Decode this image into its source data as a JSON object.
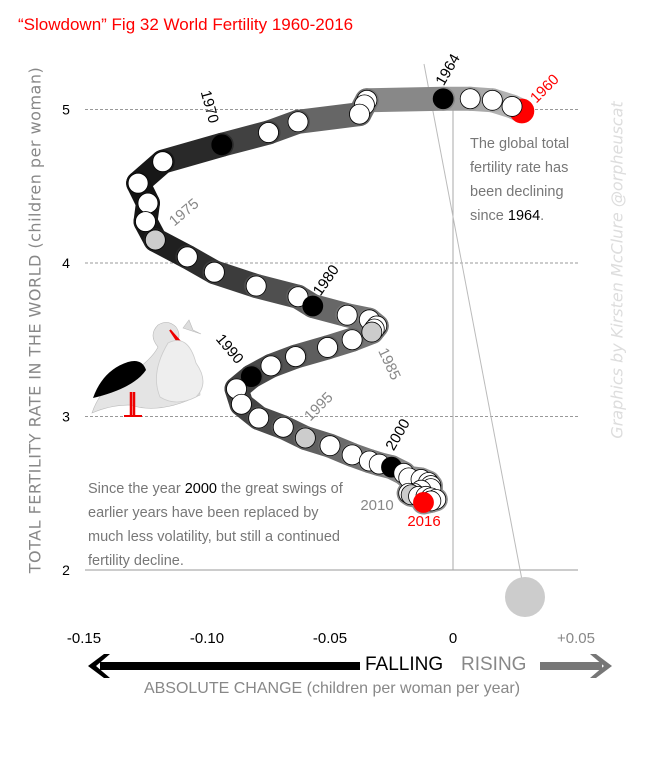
{
  "title": "“Slowdown” Fig 32 World Fertility 1960-2016",
  "annotations": {
    "top_pre": "The global total fertility rate has been declining since ",
    "top_year": "1964",
    "top_post": ".",
    "bottom_pre": "Since the year ",
    "bottom_year": "2000",
    "bottom_post": " the great swings of earlier years have been replaced by much less volatility, but still a continued fertility decline."
  },
  "credit": "Graphics by Kirsten McClure @orpheuscat",
  "arrows": {
    "falling": "FALLING",
    "rising": "RISING"
  },
  "colors": {
    "title": "#ff0000",
    "highlight_red": "#ff0000",
    "highlight_black": "#000000",
    "highlight_gray": "#cccccc",
    "muted": "#888888"
  },
  "chart_data": {
    "type": "scatter",
    "title": "“Slowdown” Fig 32 World Fertility 1960-2016",
    "xlabel": "ABSOLUTE CHANGE (children per woman per year)",
    "ylabel": "TOTAL FERTILITY RATE IN THE WORLD (children per woman)",
    "xlim": [
      -0.15,
      0.05
    ],
    "ylim": [
      2,
      5.3
    ],
    "xticks": [
      {
        "v": -0.15,
        "label": "-0.15"
      },
      {
        "v": -0.1,
        "label": "-0.10"
      },
      {
        "v": -0.05,
        "label": "-0.05"
      },
      {
        "v": 0,
        "label": "0"
      },
      {
        "v": 0.05,
        "label": "+0.05"
      }
    ],
    "yticks": [
      {
        "v": 2,
        "label": "2"
      },
      {
        "v": 3,
        "label": "3"
      },
      {
        "v": 4,
        "label": "4"
      },
      {
        "v": 5,
        "label": "5"
      }
    ],
    "grid": "horizontal dashed",
    "points": [
      {
        "year": 1960,
        "x": 0.028,
        "y": 4.99,
        "mark": "red",
        "label": "1960"
      },
      {
        "year": 1961,
        "x": 0.024,
        "y": 5.02
      },
      {
        "year": 1962,
        "x": 0.016,
        "y": 5.06
      },
      {
        "year": 1963,
        "x": 0.007,
        "y": 5.07
      },
      {
        "year": 1964,
        "x": -0.004,
        "y": 5.07,
        "mark": "black",
        "label": "1964"
      },
      {
        "year": 1965,
        "x": -0.035,
        "y": 5.06
      },
      {
        "year": 1966,
        "x": -0.036,
        "y": 5.03
      },
      {
        "year": 1967,
        "x": -0.038,
        "y": 4.97
      },
      {
        "year": 1968,
        "x": -0.063,
        "y": 4.92
      },
      {
        "year": 1969,
        "x": -0.075,
        "y": 4.85
      },
      {
        "year": 1970,
        "x": -0.094,
        "y": 4.77,
        "mark": "black",
        "label": "1970"
      },
      {
        "year": 1971,
        "x": -0.118,
        "y": 4.66
      },
      {
        "year": 1972,
        "x": -0.128,
        "y": 4.52
      },
      {
        "year": 1973,
        "x": -0.124,
        "y": 4.39
      },
      {
        "year": 1974,
        "x": -0.125,
        "y": 4.27
      },
      {
        "year": 1975,
        "x": -0.121,
        "y": 4.15,
        "mark": "gray",
        "label": "1975"
      },
      {
        "year": 1976,
        "x": -0.108,
        "y": 4.04
      },
      {
        "year": 1977,
        "x": -0.097,
        "y": 3.94
      },
      {
        "year": 1978,
        "x": -0.08,
        "y": 3.85
      },
      {
        "year": 1979,
        "x": -0.063,
        "y": 3.78
      },
      {
        "year": 1980,
        "x": -0.057,
        "y": 3.72,
        "mark": "black",
        "label": "1980"
      },
      {
        "year": 1981,
        "x": -0.043,
        "y": 3.66
      },
      {
        "year": 1982,
        "x": -0.034,
        "y": 3.63
      },
      {
        "year": 1983,
        "x": -0.031,
        "y": 3.59
      },
      {
        "year": 1984,
        "x": -0.032,
        "y": 3.57
      },
      {
        "year": 1985,
        "x": -0.033,
        "y": 3.55,
        "mark": "gray",
        "label": "1985"
      },
      {
        "year": 1986,
        "x": -0.041,
        "y": 3.5
      },
      {
        "year": 1987,
        "x": -0.051,
        "y": 3.45
      },
      {
        "year": 1988,
        "x": -0.064,
        "y": 3.39
      },
      {
        "year": 1989,
        "x": -0.074,
        "y": 3.33
      },
      {
        "year": 1990,
        "x": -0.082,
        "y": 3.26,
        "mark": "black",
        "label": "1990"
      },
      {
        "year": 1991,
        "x": -0.088,
        "y": 3.18
      },
      {
        "year": 1992,
        "x": -0.086,
        "y": 3.08
      },
      {
        "year": 1993,
        "x": -0.079,
        "y": 2.99
      },
      {
        "year": 1994,
        "x": -0.069,
        "y": 2.93
      },
      {
        "year": 1995,
        "x": -0.06,
        "y": 2.86,
        "mark": "gray",
        "label": "1995"
      },
      {
        "year": 1996,
        "x": -0.05,
        "y": 2.81
      },
      {
        "year": 1997,
        "x": -0.041,
        "y": 2.75
      },
      {
        "year": 1998,
        "x": -0.034,
        "y": 2.71
      },
      {
        "year": 1999,
        "x": -0.03,
        "y": 2.69
      },
      {
        "year": 2000,
        "x": -0.025,
        "y": 2.67,
        "mark": "black",
        "label": "2000"
      },
      {
        "year": 2001,
        "x": -0.02,
        "y": 2.63
      },
      {
        "year": 2002,
        "x": -0.018,
        "y": 2.6
      },
      {
        "year": 2003,
        "x": -0.013,
        "y": 2.59
      },
      {
        "year": 2004,
        "x": -0.01,
        "y": 2.57
      },
      {
        "year": 2005,
        "x": -0.009,
        "y": 2.55
      },
      {
        "year": 2006,
        "x": -0.009,
        "y": 2.53
      },
      {
        "year": 2007,
        "x": -0.013,
        "y": 2.52
      },
      {
        "year": 2008,
        "x": -0.016,
        "y": 2.5
      },
      {
        "year": 2009,
        "x": -0.018,
        "y": 2.5
      },
      {
        "year": 2010,
        "x": -0.017,
        "y": 2.49,
        "mark": "gray",
        "label": "2010"
      },
      {
        "year": 2011,
        "x": -0.014,
        "y": 2.48
      },
      {
        "year": 2012,
        "x": -0.011,
        "y": 2.48
      },
      {
        "year": 2013,
        "x": -0.009,
        "y": 2.47
      },
      {
        "year": 2014,
        "x": -0.007,
        "y": 2.46
      },
      {
        "year": 2015,
        "x": -0.009,
        "y": 2.45
      },
      {
        "year": 2016,
        "x": -0.012,
        "y": 2.44,
        "mark": "red",
        "label": "2016"
      }
    ]
  }
}
